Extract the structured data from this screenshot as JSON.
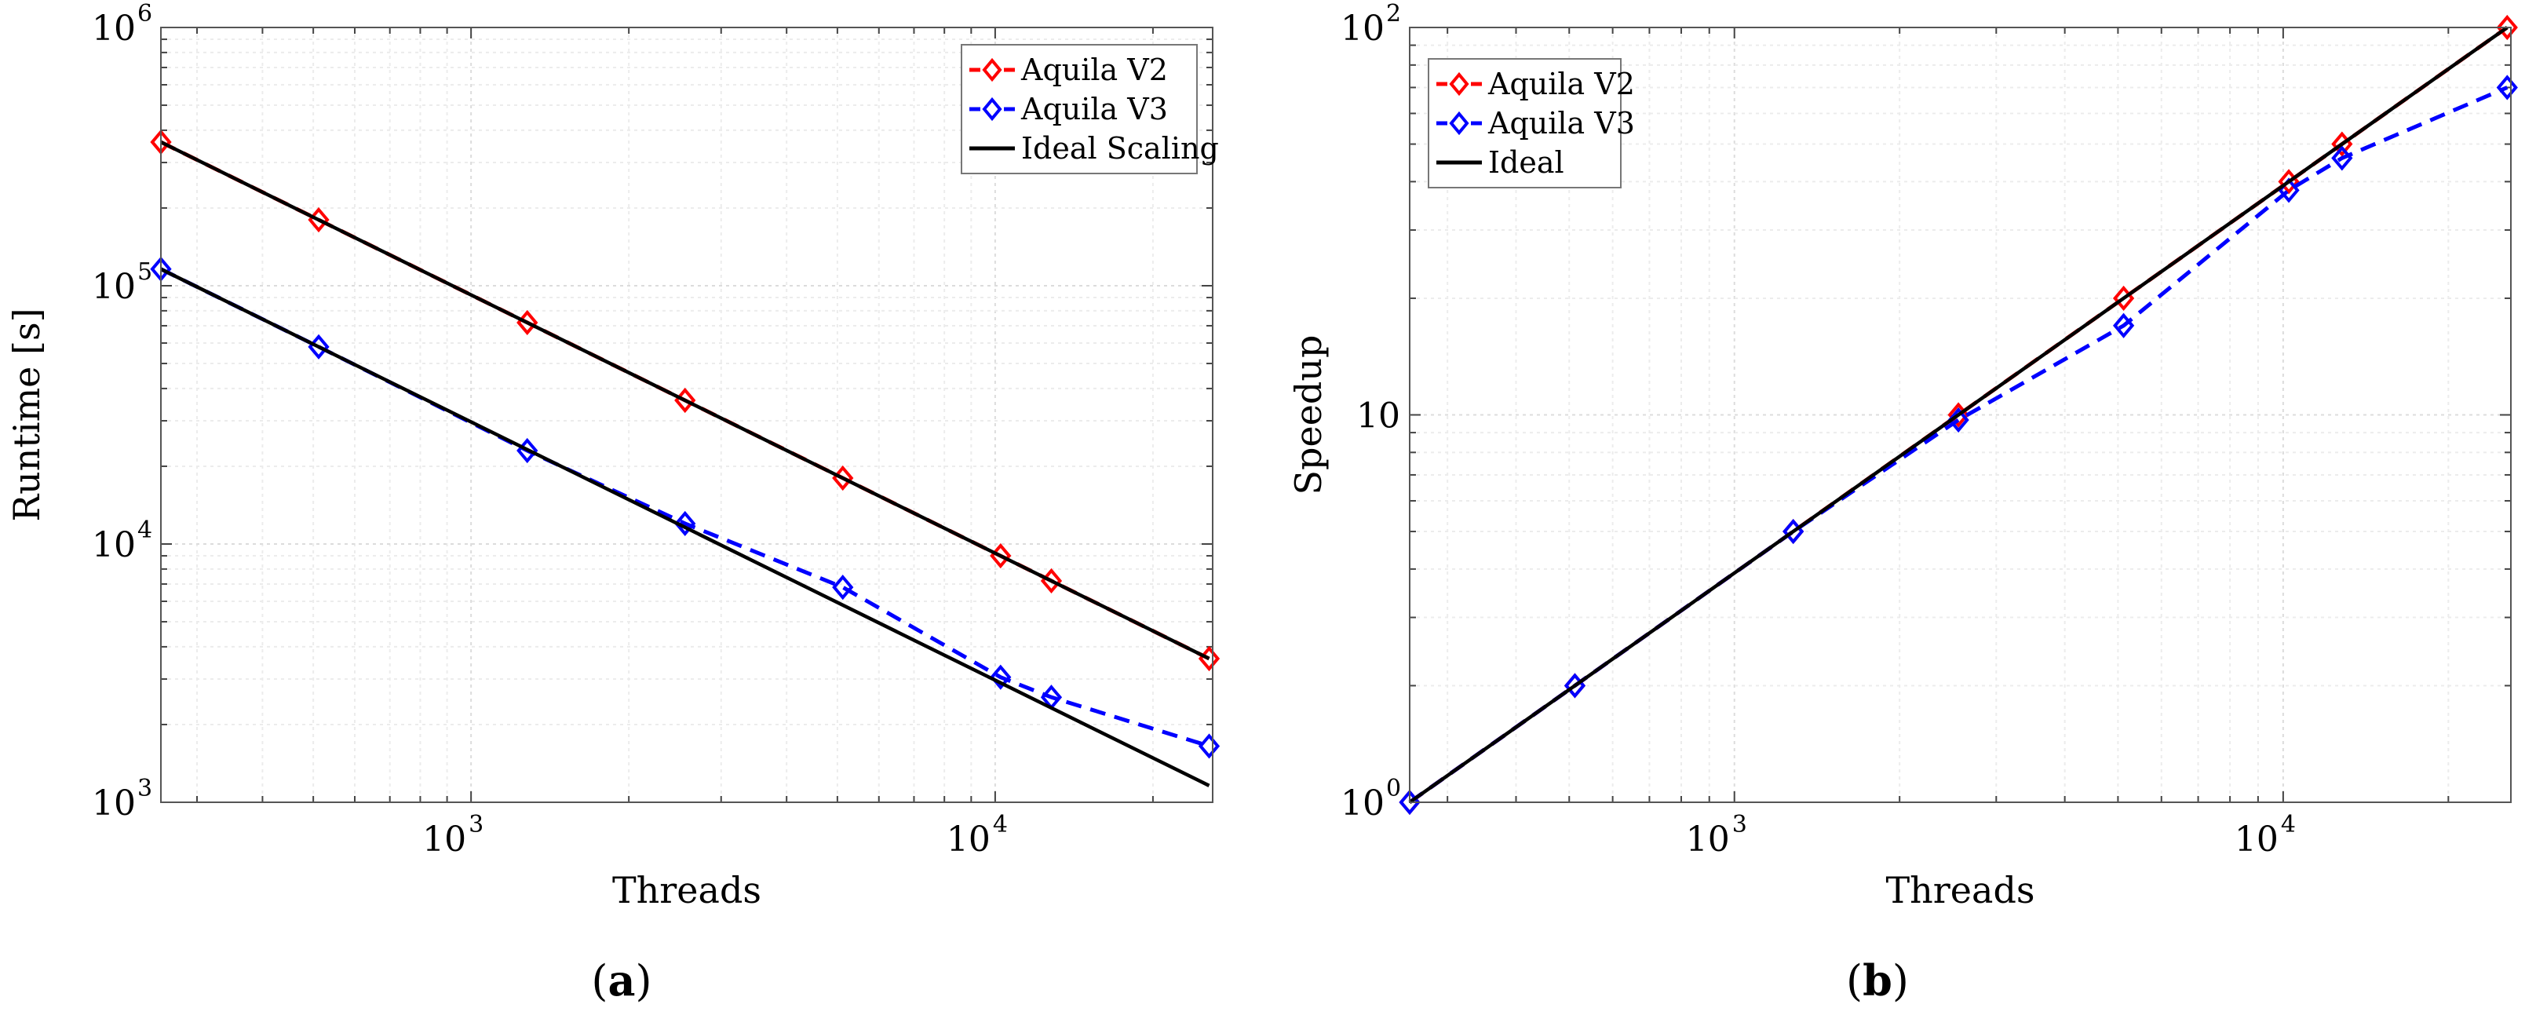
{
  "chart_data": [
    {
      "type": "line",
      "panel": "a",
      "caption_label": "a",
      "xlabel": "Threads",
      "ylabel": "Runtime [s]",
      "xscale": "log",
      "yscale": "log",
      "xlim": [
        256,
        26000
      ],
      "ylim": [
        1000,
        1000000
      ],
      "xticks": [
        {
          "base": "10",
          "exp": "3",
          "value": 1000
        },
        {
          "base": "10",
          "exp": "4",
          "value": 10000
        }
      ],
      "yticks": [
        {
          "base": "10",
          "exp": "3",
          "value": 1000
        },
        {
          "base": "10",
          "exp": "4",
          "value": 10000
        },
        {
          "base": "10",
          "exp": "5",
          "value": 100000
        },
        {
          "base": "10",
          "exp": "6",
          "value": 1000000
        }
      ],
      "grid": true,
      "legend_position": "top-right",
      "series": [
        {
          "name": "Aquila V2",
          "color": "#ff0000",
          "style": "dashed",
          "marker": "diamond",
          "x": [
            256,
            512,
            1280,
            2560,
            5120,
            10240,
            12800,
            25600
          ],
          "y": [
            360000,
            180000,
            72000,
            36000,
            18000,
            9000,
            7200,
            3600
          ]
        },
        {
          "name": "Aquila V3",
          "color": "#0000ff",
          "style": "dashed",
          "marker": "diamond",
          "x": [
            256,
            512,
            1280,
            2560,
            5120,
            10240,
            12800,
            25600
          ],
          "y": [
            116000,
            58000,
            23000,
            12000,
            6800,
            3050,
            2550,
            1650
          ]
        },
        {
          "name": "Ideal Scaling",
          "color": "#000000",
          "style": "solid",
          "marker": "none",
          "x": [
            256,
            25600
          ],
          "y": [
            360000,
            3600
          ]
        },
        {
          "name": "",
          "color": "#000000",
          "style": "solid",
          "marker": "none",
          "in_legend": false,
          "x": [
            256,
            25600
          ],
          "y": [
            116000,
            1160
          ]
        }
      ]
    },
    {
      "type": "line",
      "panel": "b",
      "caption_label": "b",
      "xlabel": "Threads",
      "ylabel": "Speedup",
      "xscale": "log",
      "yscale": "log",
      "xlim": [
        256,
        26000
      ],
      "ylim": [
        1,
        100
      ],
      "xticks": [
        {
          "base": "10",
          "exp": "3",
          "value": 1000
        },
        {
          "base": "10",
          "exp": "4",
          "value": 10000
        }
      ],
      "yticks": [
        {
          "base": "10",
          "exp": "0",
          "value": 1
        },
        {
          "base": "10",
          "exp": "",
          "value": 10
        },
        {
          "base": "10",
          "exp": "2",
          "value": 100
        }
      ],
      "grid": true,
      "legend_position": "top-left",
      "series": [
        {
          "name": "Aquila V2",
          "color": "#ff0000",
          "style": "dashed",
          "marker": "diamond",
          "x": [
            256,
            512,
            1280,
            2560,
            5120,
            10240,
            12800,
            25600
          ],
          "y": [
            1,
            2,
            5,
            10,
            20,
            40,
            50,
            100
          ]
        },
        {
          "name": "Aquila V3",
          "color": "#0000ff",
          "style": "dashed",
          "marker": "diamond",
          "x": [
            256,
            512,
            1280,
            2560,
            5120,
            10240,
            12800,
            25600
          ],
          "y": [
            1,
            2,
            5,
            9.7,
            17,
            38,
            46,
            70
          ]
        },
        {
          "name": "Ideal",
          "color": "#000000",
          "style": "solid",
          "marker": "none",
          "x": [
            256,
            25600
          ],
          "y": [
            1,
            100
          ]
        }
      ]
    }
  ]
}
